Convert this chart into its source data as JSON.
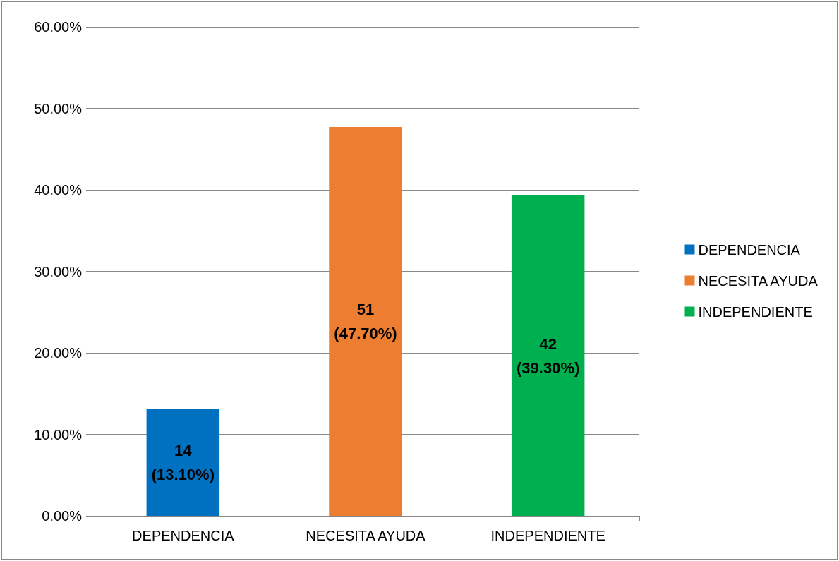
{
  "chart_data": {
    "type": "bar",
    "categories": [
      "DEPENDENCIA",
      "NECESITA AYUDA",
      "INDEPENDIENTE"
    ],
    "series": [
      {
        "name": "DEPENDENCIA",
        "color": "#0070c0",
        "values": [
          13.1,
          null,
          null
        ],
        "value_labels": [
          "14\n(13.10%)",
          null,
          null
        ]
      },
      {
        "name": "NECESITA AYUDA",
        "color": "#ed7d31",
        "values": [
          null,
          47.7,
          null
        ],
        "value_labels": [
          null,
          "51\n(47.70%)",
          null
        ]
      },
      {
        "name": "INDEPENDIENTE",
        "color": "#00b050",
        "values": [
          null,
          null,
          39.3
        ],
        "value_labels": [
          null,
          null,
          "42\n(39.30%)"
        ]
      }
    ],
    "ylim": [
      0,
      60
    ],
    "yticks": [
      {
        "value": 0,
        "label": "0.00%"
      },
      {
        "value": 10,
        "label": "10.00%"
      },
      {
        "value": 20,
        "label": "20.00%"
      },
      {
        "value": 30,
        "label": "30.00%"
      },
      {
        "value": 40,
        "label": "40.00%"
      },
      {
        "value": 50,
        "label": "50.00%"
      },
      {
        "value": 60,
        "label": "60.00%"
      }
    ],
    "grid": "y",
    "legend": "right"
  }
}
